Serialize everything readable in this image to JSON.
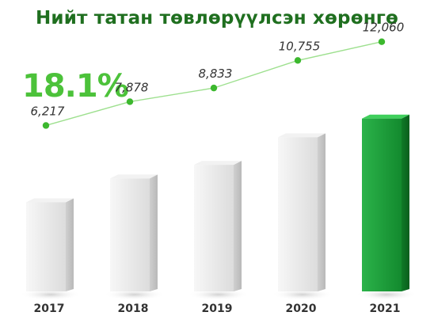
{
  "chart_data": {
    "type": "bar",
    "title": "Нийт татан төвлөрүүлсэн хөрөнгө",
    "highlight": "18.1%",
    "categories": [
      "2017",
      "2018",
      "2019",
      "2020",
      "2021"
    ],
    "values": [
      6217,
      7878,
      8833,
      10755,
      12060
    ],
    "value_labels": [
      "6,217",
      "7,878",
      "8,833",
      "10,755",
      "12,060"
    ],
    "highlighted_category": "2021",
    "colors": {
      "title": "#1f6f1f",
      "highlight_text": "#4cc23a",
      "line": "#9ee08f",
      "marker": "#3cb82e",
      "bar_default": "#e9e9e9",
      "bar_highlight": "#1f9e3a"
    },
    "grid": false,
    "legend": "none"
  }
}
